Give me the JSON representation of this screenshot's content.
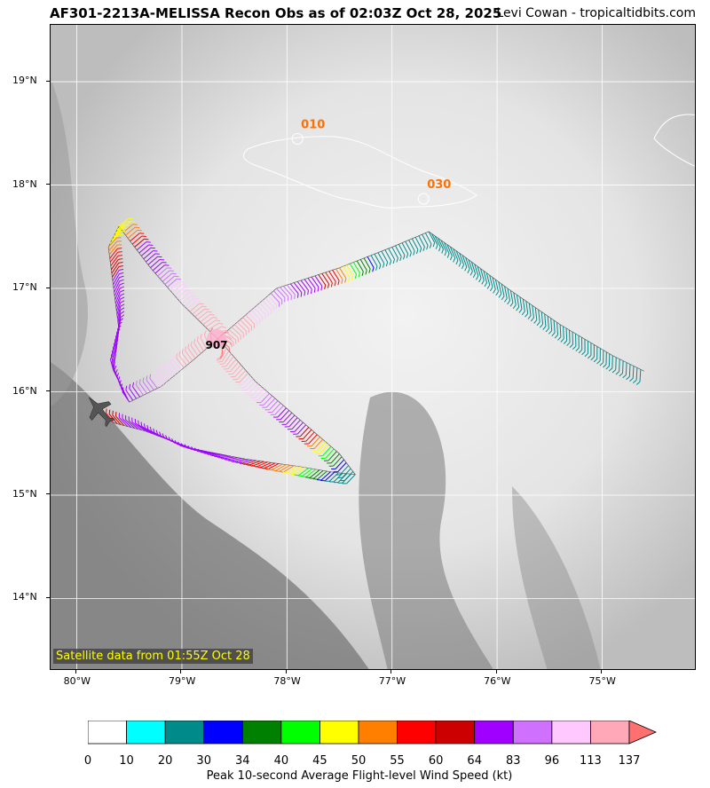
{
  "header": {
    "title": "AF301-2213A-MELISSA Recon Obs as of 02:03Z Oct 28, 2025",
    "credit": "Levi Cowan - tropicaltidbits.com"
  },
  "map": {
    "lon_range": [
      -80.25,
      -74.1
    ],
    "lat_range": [
      13.3,
      19.55
    ],
    "lon_ticks": [
      {
        "value": -80,
        "label": "80°W"
      },
      {
        "value": -79,
        "label": "79°W"
      },
      {
        "value": -78,
        "label": "78°W"
      },
      {
        "value": -77,
        "label": "77°W"
      },
      {
        "value": -76,
        "label": "76°W"
      },
      {
        "value": -75,
        "label": "75°W"
      }
    ],
    "lat_ticks": [
      {
        "value": 19,
        "label": "19°N"
      },
      {
        "value": 18,
        "label": "18°N"
      },
      {
        "value": 17,
        "label": "17°N"
      },
      {
        "value": 16,
        "label": "16°N"
      },
      {
        "value": 15,
        "label": "15°N"
      },
      {
        "value": 14,
        "label": "14°N"
      }
    ],
    "gridlines": true,
    "center_pressure_label": "907",
    "center": {
      "lon": -78.67,
      "lat": 16.47
    },
    "dropsondes": [
      {
        "label": "010",
        "lon": -77.9,
        "lat": 18.55
      },
      {
        "label": "030",
        "lon": -76.7,
        "lat": 17.97
      }
    ],
    "satellite_note": "Satellite data from 01:55Z Oct 28",
    "flight_track_lonlat": [
      [
        -79.65,
        15.7
      ],
      [
        -79.35,
        15.62
      ],
      [
        -78.9,
        15.45
      ],
      [
        -78.4,
        15.35
      ],
      [
        -77.9,
        15.28
      ],
      [
        -77.55,
        15.22
      ],
      [
        -77.35,
        15.2
      ],
      [
        -77.5,
        15.4
      ],
      [
        -77.9,
        15.75
      ],
      [
        -78.3,
        16.1
      ],
      [
        -78.6,
        16.45
      ],
      [
        -79.0,
        16.85
      ],
      [
        -79.3,
        17.2
      ],
      [
        -79.6,
        17.6
      ],
      [
        -79.7,
        17.4
      ],
      [
        -79.65,
        17.0
      ],
      [
        -79.6,
        16.6
      ],
      [
        -79.65,
        16.2
      ],
      [
        -79.5,
        15.9
      ],
      [
        -79.2,
        16.05
      ],
      [
        -78.9,
        16.3
      ],
      [
        -78.5,
        16.65
      ],
      [
        -78.1,
        17.0
      ],
      [
        -77.5,
        17.2
      ],
      [
        -77.0,
        17.4
      ],
      [
        -76.65,
        17.55
      ],
      [
        -76.3,
        17.3
      ],
      [
        -75.9,
        17.0
      ],
      [
        -75.4,
        16.65
      ],
      [
        -74.9,
        16.35
      ],
      [
        -74.6,
        16.2
      ]
    ]
  },
  "colorbar": {
    "title": "Peak 10-second Average Flight-level Wind Speed (kt)",
    "bounds": [
      0,
      10,
      20,
      30,
      34,
      40,
      45,
      50,
      55,
      60,
      64,
      83,
      96,
      113,
      137
    ],
    "bound_labels": [
      "0",
      "10",
      "20",
      "30",
      "34",
      "40",
      "45",
      "50",
      "55",
      "60",
      "64",
      "83",
      "96",
      "113",
      "137"
    ],
    "colors": [
      "#ffffff",
      "#00ffff",
      "#008b8b",
      "#0000ff",
      "#008000",
      "#00ff00",
      "#ffff00",
      "#ff8000",
      "#ff0000",
      "#cc0000",
      "#a000ff",
      "#d070ff",
      "#ffc8ff",
      "#ffa8b8"
    ],
    "extend_color": "#ff7070"
  },
  "aircraft_icon": "plane-icon"
}
